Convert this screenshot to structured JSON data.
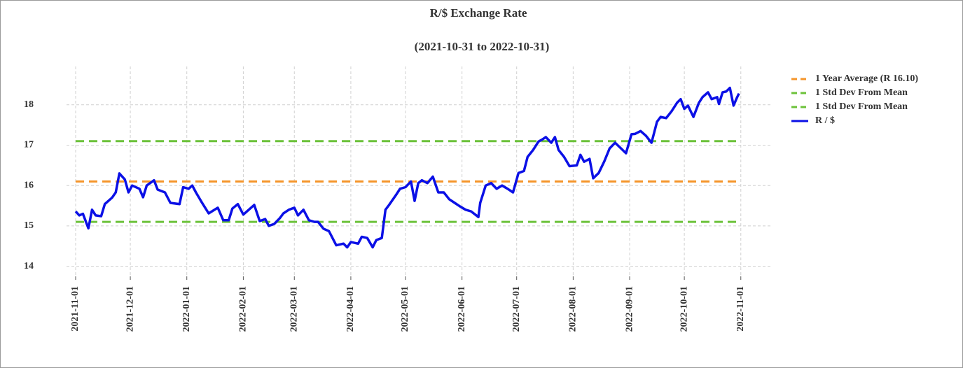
{
  "chart_data": {
    "type": "line",
    "title": "R/$  Exchange Rate",
    "subtitle": "(2021-10-31 to 2022-10-31)",
    "x": [
      "2021-11-01",
      "2021-11-03",
      "2021-11-05",
      "2021-11-08",
      "2021-11-10",
      "2021-11-12",
      "2021-11-15",
      "2021-11-17",
      "2021-11-21",
      "2021-11-23",
      "2021-11-25",
      "2021-11-28",
      "2021-11-30",
      "2021-12-02",
      "2021-12-06",
      "2021-12-08",
      "2021-12-10",
      "2021-12-14",
      "2021-12-16",
      "2021-12-20",
      "2021-12-23",
      "2021-12-28",
      "2021-12-30",
      "2022-01-02",
      "2022-01-04",
      "2022-01-06",
      "2022-01-09",
      "2022-01-13",
      "2022-01-18",
      "2022-01-21",
      "2022-01-24",
      "2022-01-26",
      "2022-01-29",
      "2022-02-01",
      "2022-02-04",
      "2022-02-07",
      "2022-02-10",
      "2022-02-13",
      "2022-02-15",
      "2022-02-18",
      "2022-02-21",
      "2022-02-23",
      "2022-02-26",
      "2022-03-01",
      "2022-03-03",
      "2022-03-06",
      "2022-03-09",
      "2022-03-12",
      "2022-03-14",
      "2022-03-17",
      "2022-03-20",
      "2022-03-24",
      "2022-03-28",
      "2022-03-30",
      "2022-04-01",
      "2022-04-05",
      "2022-04-07",
      "2022-04-10",
      "2022-04-13",
      "2022-04-15",
      "2022-04-18",
      "2022-04-20",
      "2022-04-22",
      "2022-04-26",
      "2022-04-28",
      "2022-05-01",
      "2022-05-04",
      "2022-05-06",
      "2022-05-08",
      "2022-05-10",
      "2022-05-13",
      "2022-05-16",
      "2022-05-19",
      "2022-05-22",
      "2022-05-25",
      "2022-05-28",
      "2022-05-31",
      "2022-06-03",
      "2022-06-06",
      "2022-06-10",
      "2022-06-11",
      "2022-06-14",
      "2022-06-17",
      "2022-06-20",
      "2022-06-23",
      "2022-06-26",
      "2022-06-29",
      "2022-07-02",
      "2022-07-05",
      "2022-07-07",
      "2022-07-10",
      "2022-07-13",
      "2022-07-15",
      "2022-07-17",
      "2022-07-20",
      "2022-07-22",
      "2022-07-24",
      "2022-07-27",
      "2022-07-30",
      "2022-08-03",
      "2022-08-05",
      "2022-08-07",
      "2022-08-10",
      "2022-08-12",
      "2022-08-15",
      "2022-08-18",
      "2022-08-21",
      "2022-08-24",
      "2022-08-27",
      "2022-08-30",
      "2022-09-02",
      "2022-09-04",
      "2022-09-07",
      "2022-09-10",
      "2022-09-13",
      "2022-09-16",
      "2022-09-18",
      "2022-09-21",
      "2022-09-24",
      "2022-09-27",
      "2022-09-29",
      "2022-10-01",
      "2022-10-03",
      "2022-10-06",
      "2022-10-09",
      "2022-10-11",
      "2022-10-14",
      "2022-10-16",
      "2022-10-19",
      "2022-10-20",
      "2022-10-22",
      "2022-10-24",
      "2022-10-26",
      "2022-10-28",
      "2022-10-30",
      "2022-10-31"
    ],
    "series": [
      {
        "name": "R / $",
        "color": "#0b10e6",
        "values": [
          15.36,
          15.26,
          15.3,
          14.94,
          15.4,
          15.26,
          15.24,
          15.54,
          15.7,
          15.83,
          16.3,
          16.15,
          15.83,
          16.0,
          15.92,
          15.71,
          16.0,
          16.13,
          15.9,
          15.83,
          15.57,
          15.54,
          15.96,
          15.92,
          16.0,
          15.83,
          15.6,
          15.31,
          15.45,
          15.14,
          15.14,
          15.43,
          15.54,
          15.28,
          15.4,
          15.52,
          15.12,
          15.17,
          15.0,
          15.05,
          15.19,
          15.31,
          15.4,
          15.45,
          15.26,
          15.4,
          15.14,
          15.1,
          15.1,
          14.93,
          14.87,
          14.52,
          14.56,
          14.47,
          14.6,
          14.56,
          14.73,
          14.7,
          14.47,
          14.65,
          14.7,
          15.4,
          15.52,
          15.78,
          15.92,
          15.96,
          16.1,
          15.62,
          16.06,
          16.13,
          16.06,
          16.22,
          15.83,
          15.83,
          15.66,
          15.57,
          15.48,
          15.4,
          15.36,
          15.22,
          15.57,
          16.0,
          16.06,
          15.92,
          16.0,
          15.92,
          15.83,
          16.31,
          16.36,
          16.71,
          16.88,
          17.09,
          17.14,
          17.2,
          17.06,
          17.2,
          16.88,
          16.71,
          16.48,
          16.5,
          16.76,
          16.59,
          16.66,
          16.18,
          16.31,
          16.59,
          16.92,
          17.06,
          16.93,
          16.8,
          17.27,
          17.28,
          17.35,
          17.23,
          17.06,
          17.58,
          17.7,
          17.67,
          17.84,
          18.05,
          18.14,
          17.9,
          17.98,
          17.7,
          18.05,
          18.19,
          18.31,
          18.14,
          18.19,
          18.02,
          18.31,
          18.33,
          18.42,
          17.98,
          18.19,
          18.28
        ]
      }
    ],
    "reference_lines": [
      {
        "name": "1 Year Average (R 16.10)",
        "color": "#f5952a",
        "value": 16.1
      },
      {
        "name": "1 Std Dev From Mean",
        "color": "#6cc23a",
        "value": 17.1
      },
      {
        "name": "1 Std Dev From Mean",
        "color": "#6cc23a",
        "value": 15.1
      }
    ],
    "xlim": [
      "2021-10-27",
      "2022-11-18"
    ],
    "xticks": [
      "2021-11-01",
      "2021-12-01",
      "2022-01-01",
      "2022-02-01",
      "2022-03-01",
      "2022-04-01",
      "2022-05-01",
      "2022-06-01",
      "2022-07-01",
      "2022-08-01",
      "2022-09-01",
      "2022-10-01",
      "2022-11-01"
    ],
    "ylim": [
      13.75,
      18.95
    ],
    "yticks": [
      14,
      15,
      16,
      17,
      18
    ],
    "grid": true,
    "legend": "right"
  }
}
